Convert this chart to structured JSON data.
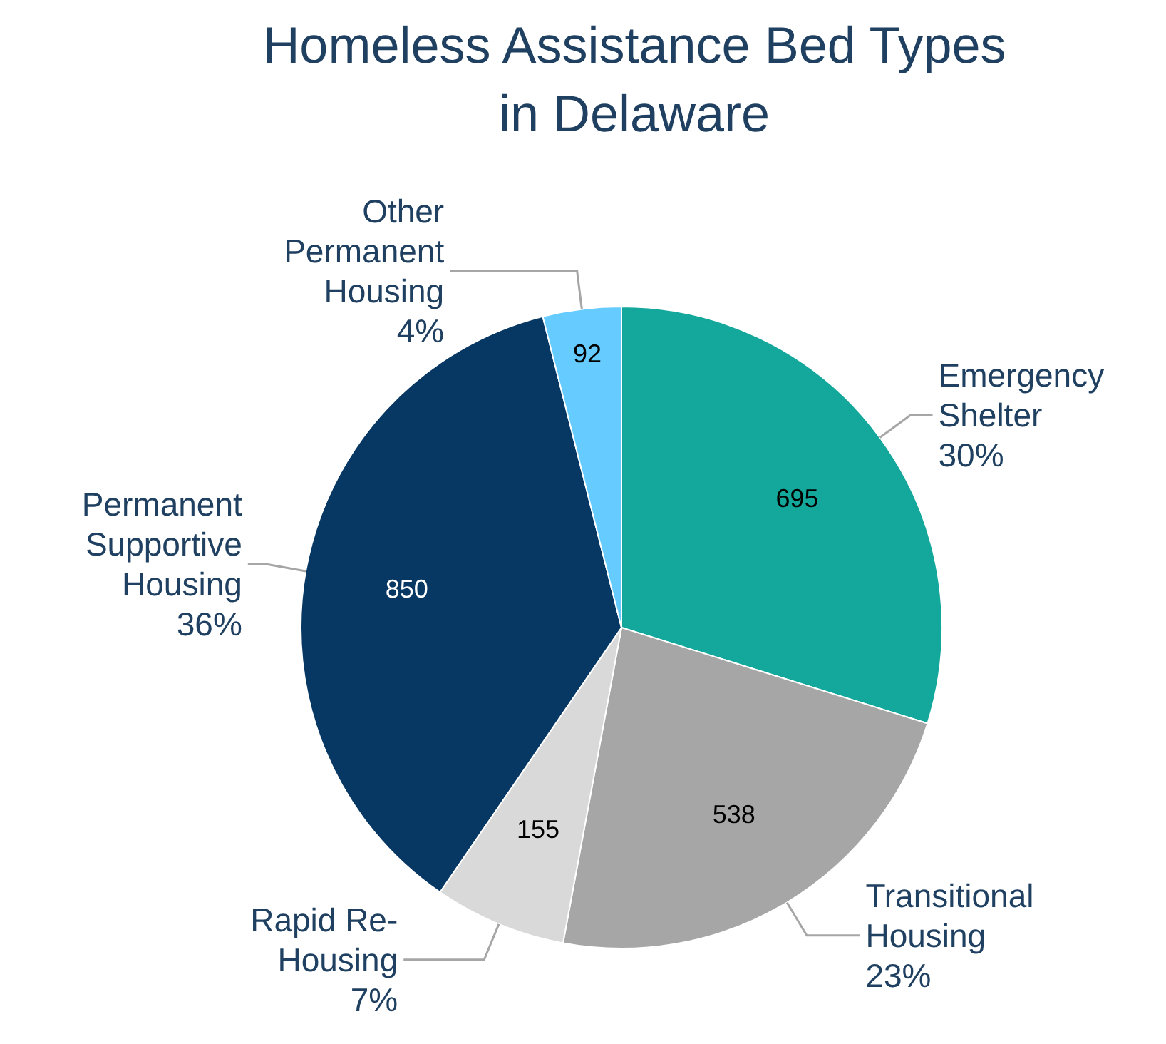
{
  "chart_data": {
    "type": "pie",
    "title": "Homeless Assistance Bed Types in Delaware",
    "categories": [
      "Emergency Shelter",
      "Transitional Housing",
      "Rapid Re-Housing",
      "Permanent Supportive Housing",
      "Other Permanent Housing"
    ],
    "values": [
      695,
      538,
      155,
      850,
      92
    ],
    "colors": [
      "#14a89c",
      "#a6a6a6",
      "#d9d9d9",
      "#073763",
      "#66ccff"
    ],
    "annotations": [
      {
        "text": "30%",
        "x": "Emergency Shelter"
      },
      {
        "text": "23%",
        "x": "Transitional Housing"
      },
      {
        "text": "7%",
        "x": "Rapid Re-Housing"
      },
      {
        "text": "36%",
        "x": "Permanent Supportive Housing"
      },
      {
        "text": "4%",
        "x": "Other Permanent Housing"
      }
    ],
    "data_labels": true
  }
}
